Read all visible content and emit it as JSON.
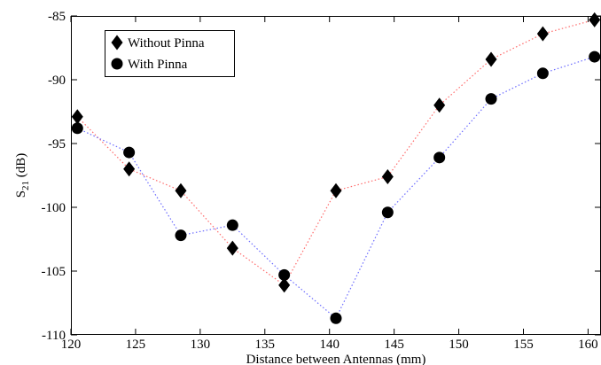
{
  "chart_data": {
    "type": "scatter",
    "xlabel": "Distance between Antennas (mm)",
    "ylabel": "S",
    "ylabel_sub": "21",
    "ylabel_unit": " (dB)",
    "xlim": [
      120,
      161
    ],
    "ylim": [
      -110,
      -85
    ],
    "xticks": [
      120,
      125,
      130,
      135,
      140,
      145,
      150,
      155,
      160
    ],
    "yticks": [
      -110,
      -105,
      -100,
      -95,
      -90,
      -85
    ],
    "grid": false,
    "legend_position": "top-left",
    "series": [
      {
        "name": "Without Pinna",
        "marker": "diamond",
        "line_color": "#ff6b6b",
        "line_style": "dotted",
        "x": [
          120.5,
          124.5,
          128.5,
          132.5,
          136.5,
          140.5,
          144.5,
          148.5,
          152.5,
          156.5,
          160.5
        ],
        "y": [
          -92.9,
          -97.0,
          -98.7,
          -103.2,
          -106.1,
          -98.7,
          -97.6,
          -92.0,
          -88.4,
          -86.4,
          -85.3
        ]
      },
      {
        "name": "With Pinna",
        "marker": "circle",
        "line_color": "#6b6bff",
        "line_style": "dotted",
        "x": [
          120.5,
          124.5,
          128.5,
          132.5,
          136.5,
          140.5,
          144.5,
          148.5,
          152.5,
          156.5,
          160.5
        ],
        "y": [
          -93.8,
          -95.7,
          -102.2,
          -101.4,
          -105.3,
          -108.7,
          -100.4,
          -96.1,
          -91.5,
          -89.5,
          -88.2
        ]
      }
    ]
  }
}
